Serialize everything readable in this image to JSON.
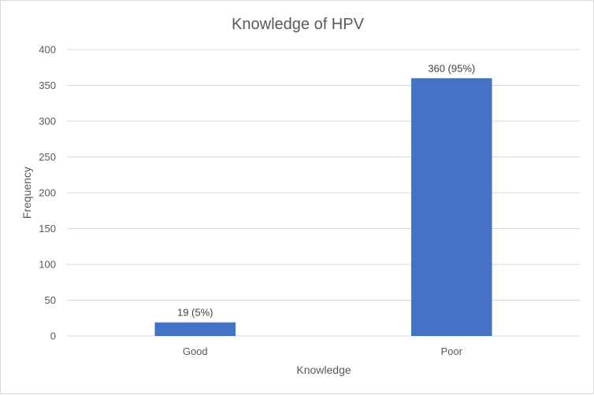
{
  "chart_data": {
    "type": "bar",
    "title": "Knowledge of HPV",
    "xlabel": "Knowledge",
    "ylabel": "Frequency",
    "categories": [
      "Good",
      "Poor"
    ],
    "values": [
      19,
      360
    ],
    "data_labels": [
      "19 (5%)",
      "360 (95%)"
    ],
    "ylim": [
      0,
      400
    ],
    "yticks": [
      0,
      50,
      100,
      150,
      200,
      250,
      300,
      350,
      400
    ],
    "grid": true,
    "bar_color": "#4472C4",
    "grid_color": "#d9d9d9"
  }
}
